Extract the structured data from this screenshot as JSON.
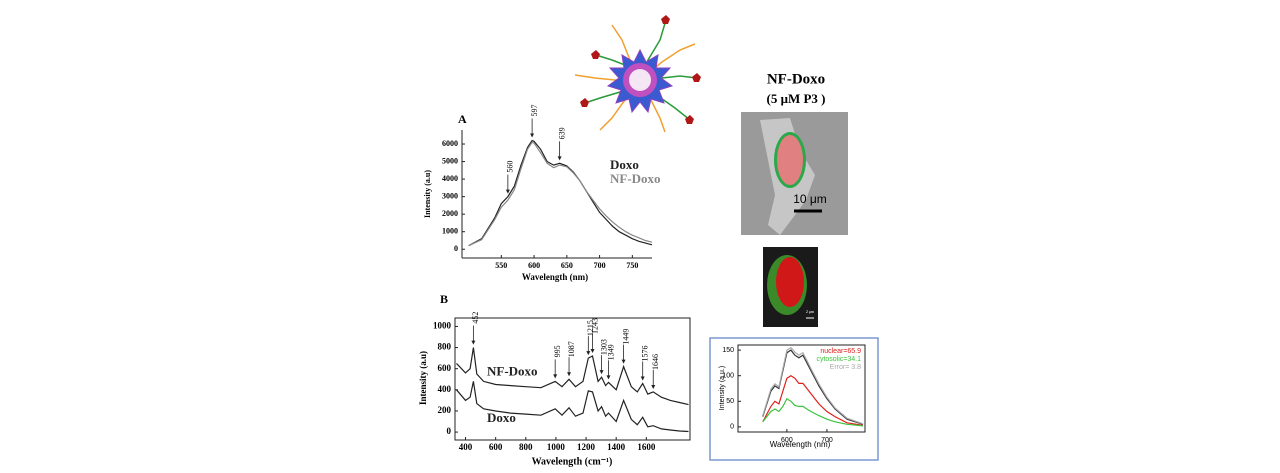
{
  "figure": {
    "title": "NF-Doxo",
    "subtitle": "(5 μM P3 )",
    "scale_bar_large": "10 μm",
    "scale_bar_small": "2 μm"
  },
  "chart_data": [
    {
      "type": "line",
      "panel": "A",
      "x_label": "Wavelength (nm)",
      "y_label": "Intensity (a.u)",
      "x": [
        500,
        520,
        540,
        550,
        560,
        570,
        580,
        590,
        597,
        600,
        610,
        620,
        630,
        639,
        650,
        660,
        670,
        680,
        690,
        700,
        710,
        720,
        730,
        740,
        750,
        760,
        770,
        780
      ],
      "series": [
        {
          "name": "Doxo",
          "color": "#222222",
          "values": [
            200,
            600,
            1800,
            2600,
            3000,
            3600,
            4800,
            5800,
            6200,
            6150,
            5700,
            5000,
            4800,
            4900,
            4750,
            4400,
            3900,
            3300,
            2700,
            2100,
            1700,
            1300,
            1000,
            800,
            600,
            450,
            350,
            250
          ]
        },
        {
          "name": "NF-Doxo",
          "color": "#888888",
          "values": [
            200,
            550,
            1700,
            2400,
            2800,
            3400,
            4600,
            5700,
            6100,
            6050,
            5500,
            4900,
            4650,
            4800,
            4700,
            4350,
            3900,
            3300,
            2800,
            2300,
            1900,
            1550,
            1250,
            1000,
            800,
            650,
            500,
            400
          ]
        }
      ],
      "xlim": [
        490,
        780
      ],
      "ylim": [
        -500,
        6800
      ],
      "xticks": [
        550,
        600,
        650,
        700,
        750
      ],
      "yticks": [
        0,
        1000,
        2000,
        3000,
        4000,
        5000,
        6000
      ],
      "legend": "right",
      "peak_labels": [
        560,
        597,
        639
      ]
    },
    {
      "type": "line",
      "panel": "B",
      "x_label": "Wavelength (cm⁻¹)",
      "y_label": "Intensity (a.u)",
      "x": [
        340,
        400,
        430,
        452,
        475,
        520,
        600,
        700,
        800,
        900,
        995,
        1040,
        1087,
        1130,
        1180,
        1215,
        1243,
        1280,
        1303,
        1330,
        1349,
        1400,
        1449,
        1500,
        1540,
        1576,
        1610,
        1646,
        1700,
        1760,
        1820,
        1880
      ],
      "series": [
        {
          "name": "NF-Doxo",
          "color": "#222222",
          "values": [
            650,
            560,
            600,
            800,
            550,
            480,
            450,
            440,
            430,
            420,
            480,
            430,
            500,
            430,
            480,
            700,
            720,
            480,
            520,
            440,
            470,
            400,
            620,
            430,
            380,
            460,
            360,
            380,
            330,
            300,
            280,
            260
          ]
        },
        {
          "name": "Doxo",
          "color": "#222222",
          "values": [
            400,
            300,
            330,
            480,
            270,
            220,
            200,
            180,
            170,
            160,
            220,
            160,
            230,
            150,
            180,
            390,
            380,
            200,
            240,
            150,
            180,
            100,
            300,
            120,
            70,
            140,
            50,
            60,
            30,
            20,
            10,
            5
          ]
        }
      ],
      "xlim": [
        330,
        1890
      ],
      "ylim": [
        -75,
        1080
      ],
      "xticks": [
        400,
        600,
        800,
        1000,
        1200,
        1400,
        1600
      ],
      "yticks": [
        0,
        200,
        400,
        600,
        800,
        1000
      ],
      "legend": "inline",
      "peak_labels": [
        452,
        995,
        1087,
        1215,
        1243,
        1303,
        1349,
        1449,
        1576,
        1646
      ]
    },
    {
      "type": "line",
      "x_label": "Wavelength (nm)",
      "y_label": "Intensity (a.u.)",
      "x": [
        540,
        560,
        570,
        580,
        590,
        600,
        610,
        620,
        630,
        640,
        650,
        660,
        680,
        700,
        720,
        750,
        790
      ],
      "series": [
        {
          "color": "#333333",
          "values": [
            20,
            70,
            80,
            75,
            110,
            145,
            150,
            140,
            135,
            140,
            125,
            110,
            80,
            55,
            35,
            15,
            5
          ]
        },
        {
          "name": "nuclear=65.9",
          "color": "#e0201b",
          "values": [
            10,
            40,
            50,
            45,
            70,
            95,
            100,
            95,
            85,
            85,
            75,
            65,
            45,
            30,
            20,
            8,
            3
          ]
        },
        {
          "name": "cytosolic=34.1",
          "color": "#3cc43c",
          "values": [
            10,
            30,
            35,
            30,
            40,
            55,
            50,
            42,
            40,
            40,
            35,
            30,
            22,
            15,
            10,
            5,
            2
          ]
        },
        {
          "name": "Error= 3.8",
          "color": "#aaaaaa",
          "values": [
            22,
            74,
            84,
            78,
            114,
            150,
            155,
            146,
            140,
            145,
            130,
            114,
            84,
            58,
            37,
            17,
            6
          ]
        }
      ],
      "xlim": [
        478,
        795
      ],
      "ylim": [
        -10,
        160
      ],
      "xticks": [
        600,
        700
      ],
      "yticks": [
        0,
        50,
        100,
        150
      ],
      "legend": "upper right"
    }
  ]
}
